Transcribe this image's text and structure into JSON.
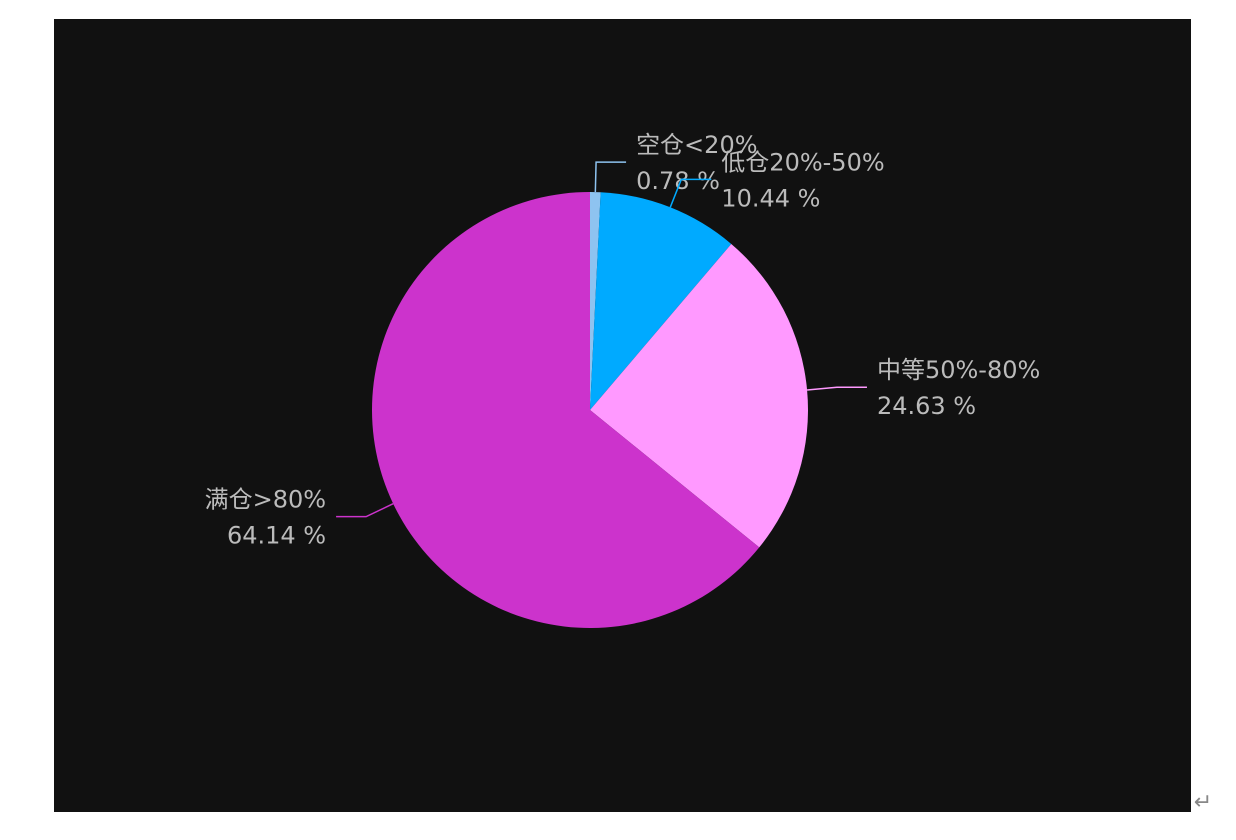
{
  "chart_data": {
    "type": "pie",
    "categories": [
      "空仓<20%",
      "低仓20%-50%",
      "中等50%-80%",
      "满仓>80%"
    ],
    "values": [
      0.78,
      10.44,
      24.63,
      64.14
    ],
    "value_labels": [
      "0.78 %",
      "10.44 %",
      "24.63 %",
      "64.14 %"
    ],
    "colors": [
      "#8ec3f0",
      "#00aaff",
      "#ff99ff",
      "#cc33cc"
    ]
  },
  "return_mark": "↵"
}
